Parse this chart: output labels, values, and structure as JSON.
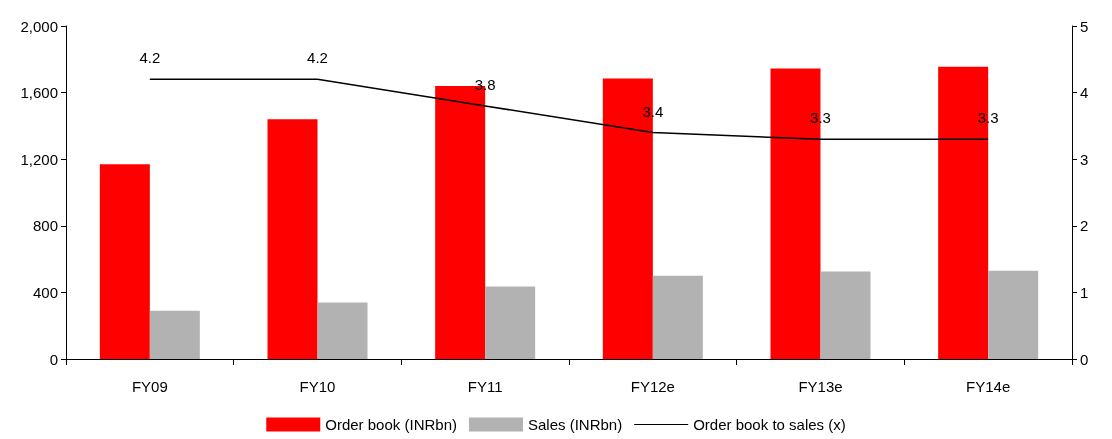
{
  "chart_data": {
    "type": "bar",
    "categories": [
      "FY09",
      "FY10",
      "FY11",
      "FY12e",
      "FY13e",
      "FY14e"
    ],
    "series": [
      {
        "name": "Order book (INRbn)",
        "color": "#ff0000",
        "values": [
          1170,
          1440,
          1640,
          1685,
          1745,
          1755
        ]
      },
      {
        "name": "Sales (INRbn)",
        "color": "#b2b2b2",
        "values": [
          290,
          340,
          435,
          500,
          525,
          530
        ]
      },
      {
        "name": "Order book to sales (x)",
        "type": "line",
        "axis": "y2",
        "color": "#000000",
        "values": [
          4.2,
          4.2,
          3.8,
          3.4,
          3.3,
          3.3
        ],
        "value_labels": [
          "4.2",
          "4.2",
          "3.8",
          "3.4",
          "3.3",
          "3.3"
        ]
      }
    ],
    "ylim": [
      0,
      2000
    ],
    "yticks": [
      {
        "value": 0,
        "label": "0"
      },
      {
        "value": 400,
        "label": "400"
      },
      {
        "value": 800,
        "label": "800"
      },
      {
        "value": 1200,
        "label": "1,200"
      },
      {
        "value": 1600,
        "label": "1,600"
      },
      {
        "value": 2000,
        "label": "2,000"
      }
    ],
    "y2lim": [
      0,
      5
    ],
    "y2ticks": [
      0,
      1,
      2,
      3,
      4,
      5
    ],
    "grid": false,
    "legend": "bottom",
    "marker": "none"
  }
}
